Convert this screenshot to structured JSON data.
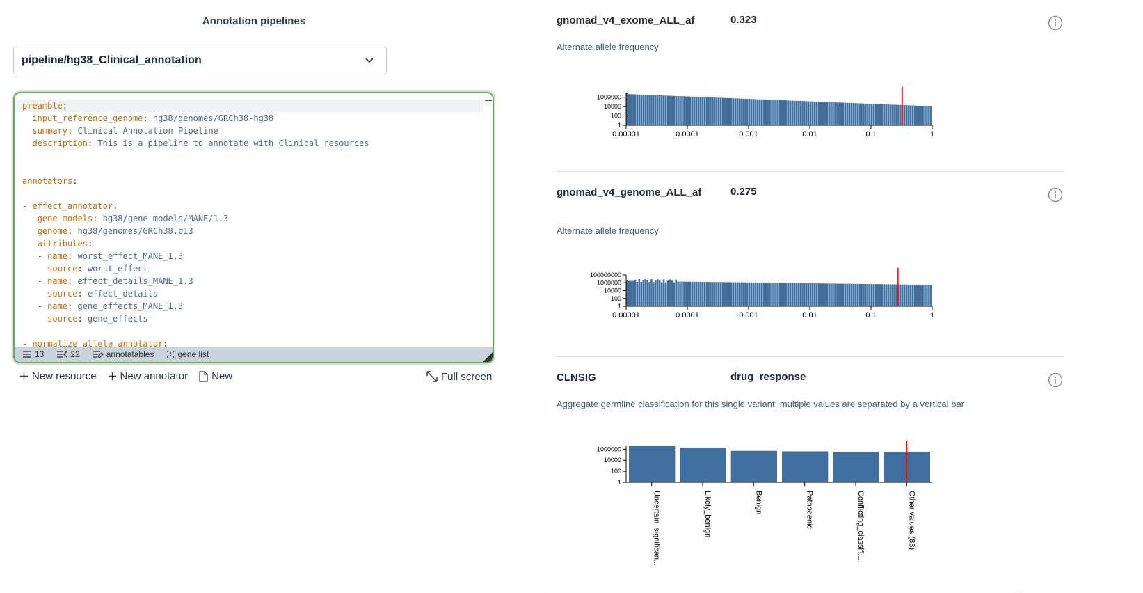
{
  "left": {
    "title": "Annotation pipelines",
    "selected_pipeline": "pipeline/hg38_Clinical_annotation",
    "editor_lines": [
      [
        {
          "c": "k",
          "t": "preamble"
        },
        {
          "c": "p",
          "t": ":"
        }
      ],
      [
        {
          "c": "p",
          "t": "  "
        },
        {
          "c": "k",
          "t": "input_reference_genome"
        },
        {
          "c": "p",
          "t": ": "
        },
        {
          "c": "v",
          "t": "hg38/genomes/GRCh38-hg38"
        }
      ],
      [
        {
          "c": "p",
          "t": "  "
        },
        {
          "c": "k",
          "t": "summary"
        },
        {
          "c": "p",
          "t": ": "
        },
        {
          "c": "v",
          "t": "Clinical Annotation Pipeline"
        }
      ],
      [
        {
          "c": "p",
          "t": "  "
        },
        {
          "c": "k",
          "t": "description"
        },
        {
          "c": "p",
          "t": ": "
        },
        {
          "c": "v",
          "t": "This is a pipeline to annotate with Clinical resources"
        }
      ],
      [],
      [],
      [
        {
          "c": "k",
          "t": "annotators"
        },
        {
          "c": "p",
          "t": ":"
        }
      ],
      [],
      [
        {
          "c": "v",
          "t": "- "
        },
        {
          "c": "k",
          "t": "effect_annotator"
        },
        {
          "c": "p",
          "t": ":"
        }
      ],
      [
        {
          "c": "p",
          "t": "   "
        },
        {
          "c": "k",
          "t": "gene_models"
        },
        {
          "c": "p",
          "t": ": "
        },
        {
          "c": "v",
          "t": "hg38/gene_models/MANE/1.3"
        }
      ],
      [
        {
          "c": "p",
          "t": "   "
        },
        {
          "c": "k",
          "t": "genome"
        },
        {
          "c": "p",
          "t": ": "
        },
        {
          "c": "v",
          "t": "hg38/genomes/GRCh38.p13"
        }
      ],
      [
        {
          "c": "p",
          "t": "   "
        },
        {
          "c": "k",
          "t": "attributes"
        },
        {
          "c": "p",
          "t": ":"
        }
      ],
      [
        {
          "c": "p",
          "t": "   "
        },
        {
          "c": "v",
          "t": "- "
        },
        {
          "c": "k",
          "t": "name"
        },
        {
          "c": "p",
          "t": ": "
        },
        {
          "c": "v",
          "t": "worst_effect_MANE_1.3"
        }
      ],
      [
        {
          "c": "p",
          "t": "     "
        },
        {
          "c": "k",
          "t": "source"
        },
        {
          "c": "p",
          "t": ": "
        },
        {
          "c": "v",
          "t": "worst_effect"
        }
      ],
      [
        {
          "c": "p",
          "t": "   "
        },
        {
          "c": "v",
          "t": "- "
        },
        {
          "c": "k",
          "t": "name"
        },
        {
          "c": "p",
          "t": ": "
        },
        {
          "c": "v",
          "t": "effect_details_MANE_1.3"
        }
      ],
      [
        {
          "c": "p",
          "t": "     "
        },
        {
          "c": "k",
          "t": "source"
        },
        {
          "c": "p",
          "t": ": "
        },
        {
          "c": "v",
          "t": "effect_details"
        }
      ],
      [
        {
          "c": "p",
          "t": "   "
        },
        {
          "c": "v",
          "t": "- "
        },
        {
          "c": "k",
          "t": "name"
        },
        {
          "c": "p",
          "t": ": "
        },
        {
          "c": "v",
          "t": "gene_effects_MANE_1.3"
        }
      ],
      [
        {
          "c": "p",
          "t": "     "
        },
        {
          "c": "k",
          "t": "source"
        },
        {
          "c": "p",
          "t": ": "
        },
        {
          "c": "v",
          "t": "gene_effects"
        }
      ],
      [],
      [
        {
          "c": "v",
          "t": "- "
        },
        {
          "c": "k",
          "t": "normalize_allele_annotator"
        },
        {
          "c": "p",
          "t": ":"
        }
      ]
    ],
    "status": {
      "lines": "13",
      "annotators_count": "22",
      "annotatables": "annotatables",
      "gene_list": "gene list"
    },
    "actions": {
      "new_resource": "New resource",
      "new_annotator": "New annotator",
      "new": "New",
      "full_screen": "Full screen"
    }
  },
  "scores": [
    {
      "name": "gnomad_v4_exome_ALL_af",
      "value": "0.323",
      "description": "Alternate allele frequency"
    },
    {
      "name": "gnomad_v4_genome_ALL_af",
      "value": "0.275",
      "description": "Alternate allele frequency"
    },
    {
      "name": "CLNSIG",
      "value": "drug_response",
      "description": "Aggregate germline classification for this single variant; multiple values are separated by a vertical bar"
    }
  ],
  "chart_data": [
    {
      "type": "bar",
      "x_scale": "log",
      "y_scale": "log",
      "x_ticks": [
        "0.00001",
        "0.0001",
        "0.001",
        "0.01",
        "0.1",
        "1"
      ],
      "y_ticks": [
        "1000000",
        "10000",
        "100",
        "1"
      ],
      "xlim": [
        1e-05,
        1
      ],
      "ylim": [
        1,
        10000000
      ],
      "marker_value": 0.323,
      "values_description": "ascending bins; counts decay from ~5000000 near 0.00001 to ~12000 near 1",
      "bins": 150,
      "start_count": 5000000,
      "end_count": 12000,
      "colors": {
        "bar": "#3f6f9f",
        "marker": "#e8141b"
      }
    },
    {
      "type": "bar",
      "x_scale": "log",
      "y_scale": "log",
      "x_ticks": [
        "0.00001",
        "0.0001",
        "0.001",
        "0.01",
        "0.1",
        "1"
      ],
      "y_ticks": [
        "100000000",
        "1000000",
        "10000",
        "100",
        "1"
      ],
      "xlim": [
        1e-05,
        1
      ],
      "ylim": [
        1,
        100000000
      ],
      "marker_value": 0.275,
      "bins": 150,
      "start_count": 3000000,
      "end_count": 300000,
      "colors": {
        "bar": "#3f6f9f",
        "marker": "#e8141b"
      }
    },
    {
      "type": "bar",
      "y_scale": "log",
      "categories": [
        "Uncertain_significan...",
        "Likely_benign",
        "Benign",
        "Pathogenic",
        "Conflicting_classifi...",
        "Other values (83)"
      ],
      "values": [
        3500000,
        2000000,
        500000,
        400000,
        300000,
        350000
      ],
      "y_ticks": [
        "1000000",
        "10000",
        "100",
        "1"
      ],
      "ylim": [
        1,
        3500000
      ],
      "marker_category": "Other values (83)",
      "colors": {
        "bar": "#3f6f9f",
        "marker": "#e8141b"
      }
    }
  ]
}
